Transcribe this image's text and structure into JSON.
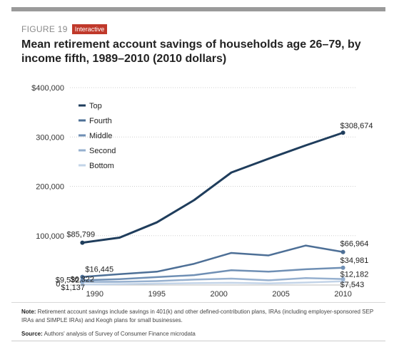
{
  "header": {
    "figure_label": "FIGURE 19",
    "badge_label": "Interactive",
    "title": "Mean retirement account savings of households age 26–79, by income fifth, 1989–2010 (2010 dollars)"
  },
  "chart_data": {
    "type": "line",
    "title": "Mean retirement account savings of households age 26–79, by income fifth, 1989–2010 (2010 dollars)",
    "xlabel": "",
    "ylabel": "",
    "xlim": [
      1988,
      2011
    ],
    "ylim": [
      0,
      400000
    ],
    "x_ticks": [
      1990,
      1995,
      2000,
      2005,
      2010
    ],
    "x_tick_labels": [
      "1990",
      "1995",
      "2000",
      "2005",
      "2010"
    ],
    "y_ticks": [
      100000,
      200000,
      300000,
      400000
    ],
    "y_tick_labels": [
      "100,000",
      "200,000",
      "300,000",
      "$400,000"
    ],
    "grid": "horizontal",
    "legend_position": "top-left",
    "x": [
      1989,
      1992,
      1995,
      1998,
      2001,
      2004,
      2007,
      2010
    ],
    "series": [
      {
        "name": "Top",
        "color": "#1f3d5c",
        "values": [
          85799,
          96000,
          127000,
          172000,
          228000,
          256000,
          283000,
          308674
        ]
      },
      {
        "name": "Fourth",
        "color": "#4d6f96",
        "values": [
          16445,
          22000,
          27000,
          43000,
          65000,
          60000,
          80000,
          66964
        ]
      },
      {
        "name": "Middle",
        "color": "#6f8fb4",
        "values": [
          9532,
          12000,
          16000,
          20000,
          30000,
          27000,
          32000,
          34981
        ]
      },
      {
        "name": "Second",
        "color": "#96b0cf",
        "values": [
          6322,
          6500,
          8000,
          11000,
          13000,
          9500,
          14000,
          12182
        ]
      },
      {
        "name": "Bottom",
        "color": "#c3d4e8",
        "values": [
          1137,
          1800,
          2800,
          3800,
          4500,
          3200,
          5000,
          7543
        ]
      }
    ],
    "start_labels": [
      {
        "text": "$85,799",
        "series": 0
      },
      {
        "text": "$16,445",
        "series": 1
      },
      {
        "text": "$9,532",
        "series": 2
      },
      {
        "text": "$6,322",
        "series": 3
      },
      {
        "text": "$1,137",
        "series": 4
      }
    ],
    "end_labels": [
      {
        "text": "$308,674",
        "series": 0
      },
      {
        "text": "$66,964",
        "series": 1
      },
      {
        "text": "$34,981",
        "series": 2
      },
      {
        "text": "$12,182",
        "series": 3
      },
      {
        "text": "$7,543",
        "series": 4
      }
    ],
    "zero_label": "0"
  },
  "footer": {
    "note_label": "Note:",
    "note_text": " Retirement account savings include savings in 401(k) and other defined-contribution plans, IRAs (including employer-sponsored SEP IRAs and SIMPLE IRAs) and Keogh plans for small businesses.",
    "source_label": "Source:",
    "source_text": " Authors' analysis of Survey of Consumer Finance microdata"
  }
}
